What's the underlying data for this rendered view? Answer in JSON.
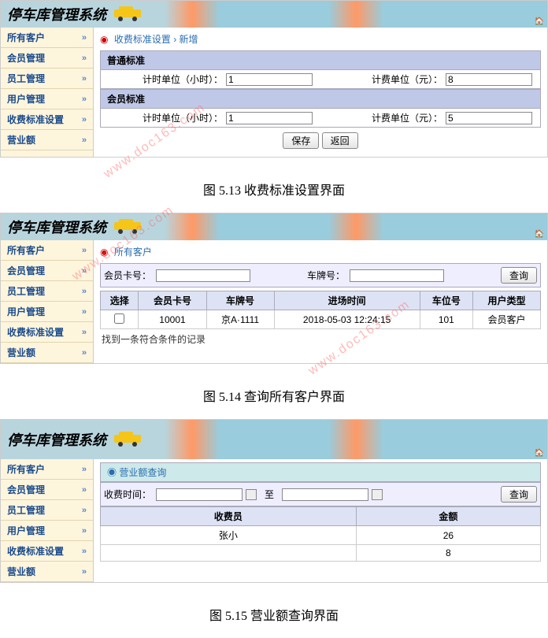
{
  "common": {
    "system_title": "停车库管理系统",
    "home_icon_label": "首页"
  },
  "sidebar": {
    "items": [
      {
        "label": "所有客户"
      },
      {
        "label": "会员管理"
      },
      {
        "label": "员工管理"
      },
      {
        "label": "用户管理"
      },
      {
        "label": "收费标准设置"
      },
      {
        "label": "营业额"
      }
    ]
  },
  "screen1": {
    "breadcrumb_a": "收费标准设置",
    "breadcrumb_sep": "›",
    "breadcrumb_b": "新增",
    "sections": [
      {
        "title": "普通标准",
        "unit_time_label": "计时单位（小时）：",
        "unit_time_value": "1",
        "fee_label": "计费单位（元）：",
        "fee_value": "8"
      },
      {
        "title": "会员标准",
        "unit_time_label": "计时单位（小时）：",
        "unit_time_value": "1",
        "fee_label": "计费单位（元）：",
        "fee_value": "5"
      }
    ],
    "save_btn": "保存",
    "back_btn": "返回",
    "caption": "图 5.13 收费标准设置界面"
  },
  "screen2": {
    "breadcrumb": "所有客户",
    "search": {
      "member_label": "会员卡号：",
      "plate_label": "车牌号：",
      "btn": "查询"
    },
    "table": {
      "columns": [
        "选择",
        "会员卡号",
        "车牌号",
        "进场时间",
        "车位号",
        "用户类型"
      ],
      "rows": [
        [
          "",
          "10001",
          "京A·1111",
          "2018-05-03 12:24:15",
          "101",
          "会员客户"
        ]
      ]
    },
    "result_msg": "找到一条符合条件的记录",
    "caption": "图 5.14 查询所有客户界面"
  },
  "screen3": {
    "section_title": "营业额查询",
    "time_label": "收费时间：",
    "to_label": "至",
    "search_btn": "查询",
    "table": {
      "columns": [
        "收费员",
        "金额"
      ],
      "rows": [
        [
          "张小",
          "26"
        ],
        [
          "",
          "8"
        ]
      ]
    },
    "caption": "图 5.15 营业额查询界面"
  },
  "watermark": "www.doc163.com"
}
